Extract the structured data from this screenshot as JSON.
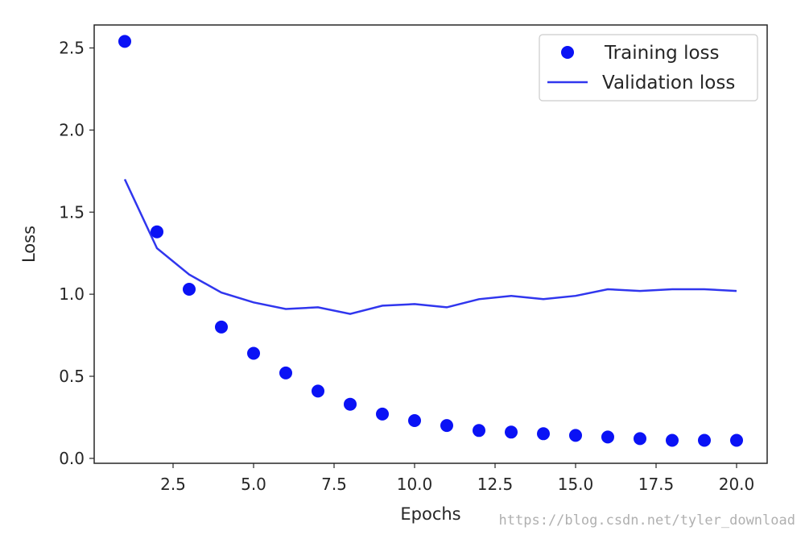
{
  "chart_data": {
    "type": "scatter+line",
    "title": "",
    "xlabel": "Epochs",
    "ylabel": "Loss",
    "xlim": [
      0.05,
      20.95
    ],
    "ylim": [
      -0.03,
      2.64
    ],
    "x_ticks": [
      2.5,
      5.0,
      7.5,
      10.0,
      12.5,
      15.0,
      17.5,
      20.0
    ],
    "x_tick_labels": [
      "2.5",
      "5.0",
      "7.5",
      "10.0",
      "12.5",
      "15.0",
      "17.5",
      "20.0"
    ],
    "y_ticks": [
      0.0,
      0.5,
      1.0,
      1.5,
      2.0,
      2.5
    ],
    "y_tick_labels": [
      "0.0",
      "0.5",
      "1.0",
      "1.5",
      "2.0",
      "2.5"
    ],
    "legend_position": "top-right",
    "grid": false,
    "series": [
      {
        "name": "Training loss",
        "style": "dots",
        "color": "#0a12f5",
        "x": [
          1,
          2,
          3,
          4,
          5,
          6,
          7,
          8,
          9,
          10,
          11,
          12,
          13,
          14,
          15,
          16,
          17,
          18,
          19,
          20
        ],
        "values": [
          2.54,
          1.38,
          1.03,
          0.8,
          0.64,
          0.52,
          0.41,
          0.33,
          0.27,
          0.23,
          0.2,
          0.17,
          0.16,
          0.15,
          0.14,
          0.13,
          0.12,
          0.11,
          0.11,
          0.11
        ]
      },
      {
        "name": "Validation loss",
        "style": "line",
        "color": "#3036ee",
        "x": [
          1,
          2,
          3,
          4,
          5,
          6,
          7,
          8,
          9,
          10,
          11,
          12,
          13,
          14,
          15,
          16,
          17,
          18,
          19,
          20
        ],
        "values": [
          1.7,
          1.28,
          1.12,
          1.01,
          0.95,
          0.91,
          0.92,
          0.88,
          0.93,
          0.94,
          0.92,
          0.97,
          0.99,
          0.97,
          0.99,
          1.03,
          1.02,
          1.03,
          1.03,
          1.02
        ]
      }
    ]
  },
  "watermark": "https://blog.csdn.net/tyler_download"
}
